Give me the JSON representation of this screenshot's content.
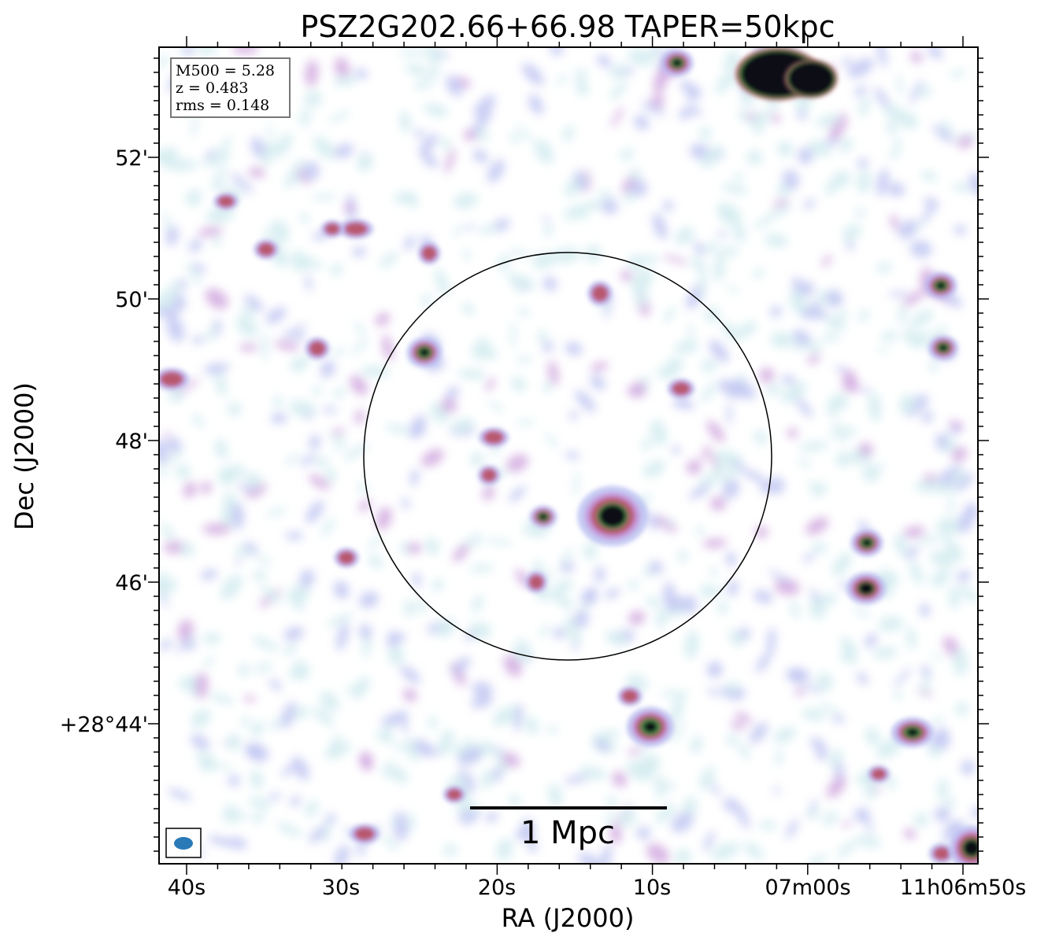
{
  "figure": {
    "title": "PSZ2G202.66+66.98 TAPER=50kpc",
    "xlabel": "RA (J2000)",
    "ylabel": "Dec (J2000)",
    "x_ticks": [
      "40s",
      "30s",
      "20s",
      "10s",
      "07m00s",
      "11h06m50s"
    ],
    "y_ticks": [
      "52'",
      "50'",
      "48'",
      "46'",
      "+28°44'"
    ],
    "info_box": {
      "line1": "M500 = 5.28",
      "line2": "z = 0.483",
      "line3": "rms = 0.148"
    },
    "scalebar_label": "1 Mpc",
    "colors": {
      "faint": "#cfeaee",
      "low": "#b7bdf0",
      "mid": "#c795d8",
      "high": "#b8596e",
      "peak_ring": "#3f8a4a",
      "core": "#0a0a12",
      "beam": "#2a7ab8"
    }
  }
}
